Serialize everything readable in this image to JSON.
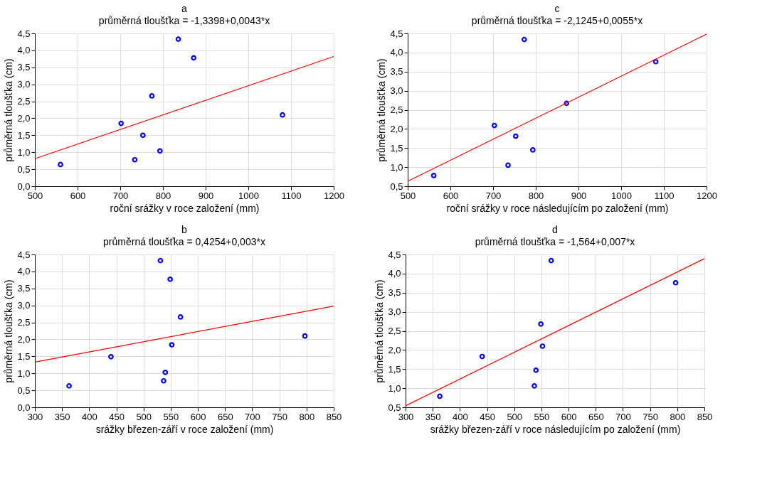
{
  "chart_data": [
    {
      "type": "scatter",
      "title": "a",
      "subtitle": "průměrná tloušťka = -1,3398+0,0043*x",
      "xlabel": "roční srážky v roce založení (mm)",
      "ylabel": "průměrná tloušťka (cm)",
      "xlim": [
        500,
        1200
      ],
      "ylim": [
        0,
        4.5
      ],
      "xticks": [
        500,
        600,
        700,
        800,
        900,
        1000,
        1100,
        1200
      ],
      "yticks": [
        {
          "value": 0,
          "label": "0,0"
        },
        {
          "value": 0.5,
          "label": "0,5"
        },
        {
          "value": 1,
          "label": "1,0"
        },
        {
          "value": 1.5,
          "label": "1,5"
        },
        {
          "value": 2,
          "label": "2,0"
        },
        {
          "value": 2.5,
          "label": "2,5"
        },
        {
          "value": 3,
          "label": "3,0"
        },
        {
          "value": 3.5,
          "label": "3,5"
        },
        {
          "value": 4,
          "label": "4,0"
        },
        {
          "value": 4.5,
          "label": "4,5"
        }
      ],
      "grid": true,
      "series": [
        {
          "type": "scatter",
          "marker": "circle",
          "color": "#0000ff",
          "x": [
            560,
            702,
            734,
            753,
            774,
            793,
            836,
            872,
            1080
          ],
          "values": [
            0.64,
            1.85,
            0.78,
            1.5,
            2.66,
            1.04,
            4.33,
            3.78,
            2.1
          ]
        },
        {
          "type": "line",
          "marker": "none",
          "color": "#ff0000",
          "x": [
            500,
            1200
          ],
          "values": [
            0.81,
            3.82
          ]
        }
      ]
    },
    {
      "type": "scatter",
      "title": "c",
      "subtitle": "průměrná tloušťka = -2,1245+0,0055*x",
      "xlabel": "roční srážky v roce následujícím po založení (mm)",
      "ylabel": "průměrná tloušťka (cm)",
      "xlim": [
        500,
        1200
      ],
      "ylim": [
        0.5,
        4.5
      ],
      "xticks": [
        500,
        600,
        700,
        800,
        900,
        1000,
        1100,
        1200
      ],
      "yticks": [
        {
          "value": 0.5,
          "label": "0,5"
        },
        {
          "value": 1,
          "label": "1,0"
        },
        {
          "value": 1.5,
          "label": "1,5"
        },
        {
          "value": 2,
          "label": "2,0"
        },
        {
          "value": 2.5,
          "label": "2,5"
        },
        {
          "value": 3,
          "label": "3,0"
        },
        {
          "value": 3.5,
          "label": "3,5"
        },
        {
          "value": 4,
          "label": "4,0"
        },
        {
          "value": 4.5,
          "label": "4,5"
        }
      ],
      "grid": true,
      "series": [
        {
          "type": "scatter",
          "marker": "circle",
          "color": "#0000ff",
          "x": [
            561,
            703,
            735,
            753,
            773,
            793,
            872,
            1081
          ],
          "values": [
            0.78,
            2.09,
            1.05,
            1.81,
            4.34,
            1.45,
            2.67,
            3.76
          ]
        },
        {
          "type": "line",
          "marker": "none",
          "color": "#ff0000",
          "x": [
            500,
            1200
          ],
          "values": [
            0.63,
            4.48
          ]
        }
      ]
    },
    {
      "type": "scatter",
      "title": "b",
      "subtitle": "průměrná tloušťka = 0,4254+0,003*x",
      "xlabel": "srážky březen-září v roce založení (mm)",
      "ylabel": "průměrná tloušťka (cm)",
      "xlim": [
        300,
        850
      ],
      "ylim": [
        0,
        4.5
      ],
      "xticks": [
        300,
        350,
        400,
        450,
        500,
        550,
        600,
        650,
        700,
        750,
        800,
        850
      ],
      "yticks": [
        {
          "value": 0,
          "label": "0,0"
        },
        {
          "value": 0.5,
          "label": "0,5"
        },
        {
          "value": 1,
          "label": "1,0"
        },
        {
          "value": 1.5,
          "label": "1,5"
        },
        {
          "value": 2,
          "label": "2,0"
        },
        {
          "value": 2.5,
          "label": "2,5"
        },
        {
          "value": 3,
          "label": "3,0"
        },
        {
          "value": 3.5,
          "label": "3,5"
        },
        {
          "value": 4,
          "label": "4,0"
        },
        {
          "value": 4.5,
          "label": "4,5"
        }
      ],
      "grid": true,
      "series": [
        {
          "type": "scatter",
          "marker": "circle",
          "color": "#0000ff",
          "x": [
            363,
            440,
            531,
            537,
            540,
            549,
            552,
            568,
            797
          ],
          "values": [
            0.63,
            1.49,
            4.32,
            0.78,
            1.03,
            3.77,
            1.84,
            2.66,
            2.1
          ]
        },
        {
          "type": "line",
          "marker": "none",
          "color": "#ff0000",
          "x": [
            300,
            850
          ],
          "values": [
            1.33,
            2.98
          ]
        }
      ]
    },
    {
      "type": "scatter",
      "title": "d",
      "subtitle": "průměrná tloušťka = -1,564+0,007*x",
      "xlabel": "srážky březen-září v roce následujícím po založení (mm)",
      "ylabel": "průměrná tloušťka (cm)",
      "xlim": [
        300,
        850
      ],
      "ylim": [
        0.5,
        4.5
      ],
      "xticks": [
        300,
        350,
        400,
        450,
        500,
        550,
        600,
        650,
        700,
        750,
        800,
        850
      ],
      "yticks": [
        {
          "value": 0.5,
          "label": "0,5"
        },
        {
          "value": 1,
          "label": "1,0"
        },
        {
          "value": 1.5,
          "label": "1,5"
        },
        {
          "value": 2,
          "label": "2,0"
        },
        {
          "value": 2.5,
          "label": "2,5"
        },
        {
          "value": 3,
          "label": "3,0"
        },
        {
          "value": 3.5,
          "label": "3,5"
        },
        {
          "value": 4,
          "label": "4,0"
        },
        {
          "value": 4.5,
          "label": "4,5"
        }
      ],
      "grid": true,
      "series": [
        {
          "type": "scatter",
          "marker": "circle",
          "color": "#0000ff",
          "x": [
            363,
            441,
            537,
            540,
            549,
            552,
            568,
            797
          ],
          "values": [
            0.79,
            1.83,
            1.06,
            1.47,
            2.68,
            2.1,
            4.34,
            3.76
          ]
        },
        {
          "type": "line",
          "marker": "none",
          "color": "#ff0000",
          "x": [
            300,
            850
          ],
          "values": [
            0.54,
            4.39
          ]
        }
      ]
    }
  ]
}
